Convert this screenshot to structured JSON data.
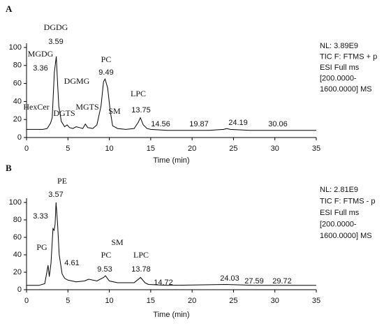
{
  "chart_data": [
    {
      "type": "line",
      "panel": "A",
      "xlabel": "Time (min)",
      "color": "#000000",
      "xlim": [
        0,
        35
      ],
      "ylim": [
        0,
        100
      ],
      "xticks": [
        0,
        5,
        10,
        15,
        20,
        25,
        30,
        35
      ],
      "yticks": [
        0,
        20,
        40,
        60,
        80,
        100
      ],
      "x": [
        0,
        1,
        2,
        2.5,
        2.9,
        3.1,
        3.36,
        3.5,
        3.59,
        3.75,
        3.9,
        4.2,
        4.6,
        4.9,
        5.2,
        5.6,
        6.0,
        6.4,
        6.8,
        7.1,
        7.4,
        8,
        8.5,
        9.0,
        9.3,
        9.49,
        9.8,
        10.1,
        10.4,
        11,
        12,
        13,
        13.5,
        13.75,
        14.1,
        14.56,
        15,
        17,
        19.87,
        22,
        23.8,
        24.19,
        24.6,
        27,
        30.06,
        35
      ],
      "values": [
        9,
        9,
        9,
        10,
        16,
        22,
        72,
        83,
        90,
        60,
        35,
        18,
        12,
        14,
        11,
        10,
        12,
        11,
        10,
        15,
        11,
        10,
        14,
        35,
        62,
        65,
        55,
        30,
        13,
        10,
        9,
        10,
        17,
        22,
        14,
        10,
        9,
        8,
        8,
        8,
        9,
        10,
        9,
        8,
        8,
        8
      ],
      "peak_labels": [
        "DGDG",
        "MGDG",
        "DGMG",
        "HexCer",
        "DGTS",
        "MGTS",
        "PC",
        "SM",
        "LPC"
      ],
      "retention_times": [
        3.59,
        3.36,
        9.49,
        13.75,
        14.56,
        19.87,
        24.19,
        30.06
      ],
      "info": [
        "NL: 3.89E9",
        "TIC F: FTMS + p",
        "ESI Full ms",
        "[200.0000-",
        "1600.0000]  MS"
      ]
    },
    {
      "type": "line",
      "panel": "B",
      "xlabel": "Time (min)",
      "color": "#000000",
      "xlim": [
        0,
        35
      ],
      "ylim": [
        0,
        100
      ],
      "xticks": [
        0,
        5,
        10,
        15,
        20,
        25,
        30,
        35
      ],
      "yticks": [
        0,
        20,
        40,
        60,
        80,
        100
      ],
      "x": [
        0,
        1.5,
        2.2,
        2.45,
        2.6,
        2.75,
        2.95,
        3.2,
        3.33,
        3.45,
        3.57,
        3.75,
        3.95,
        4.3,
        4.61,
        5,
        6,
        7,
        7.5,
        8.5,
        9.3,
        9.53,
        10,
        11,
        13,
        13.78,
        14.3,
        14.72,
        17,
        24.03,
        27.59,
        29.72,
        35
      ],
      "values": [
        5,
        5,
        7,
        20,
        28,
        15,
        30,
        70,
        68,
        75,
        100,
        75,
        40,
        18,
        13,
        11,
        9,
        10,
        12,
        10,
        14,
        16,
        10,
        8,
        8,
        14,
        8,
        6,
        5,
        6,
        5,
        5,
        5
      ],
      "peak_labels": [
        "PE",
        "PG",
        "SM",
        "PC",
        "LPC"
      ],
      "retention_times": [
        3.57,
        3.33,
        4.61,
        9.53,
        13.78,
        14.72,
        24.03,
        27.59,
        29.72
      ],
      "info": [
        "NL: 2.81E9",
        "TIC F: FTMS - p",
        "ESI Full ms",
        "[200.0000-",
        "1600.0000]  MS"
      ]
    }
  ]
}
